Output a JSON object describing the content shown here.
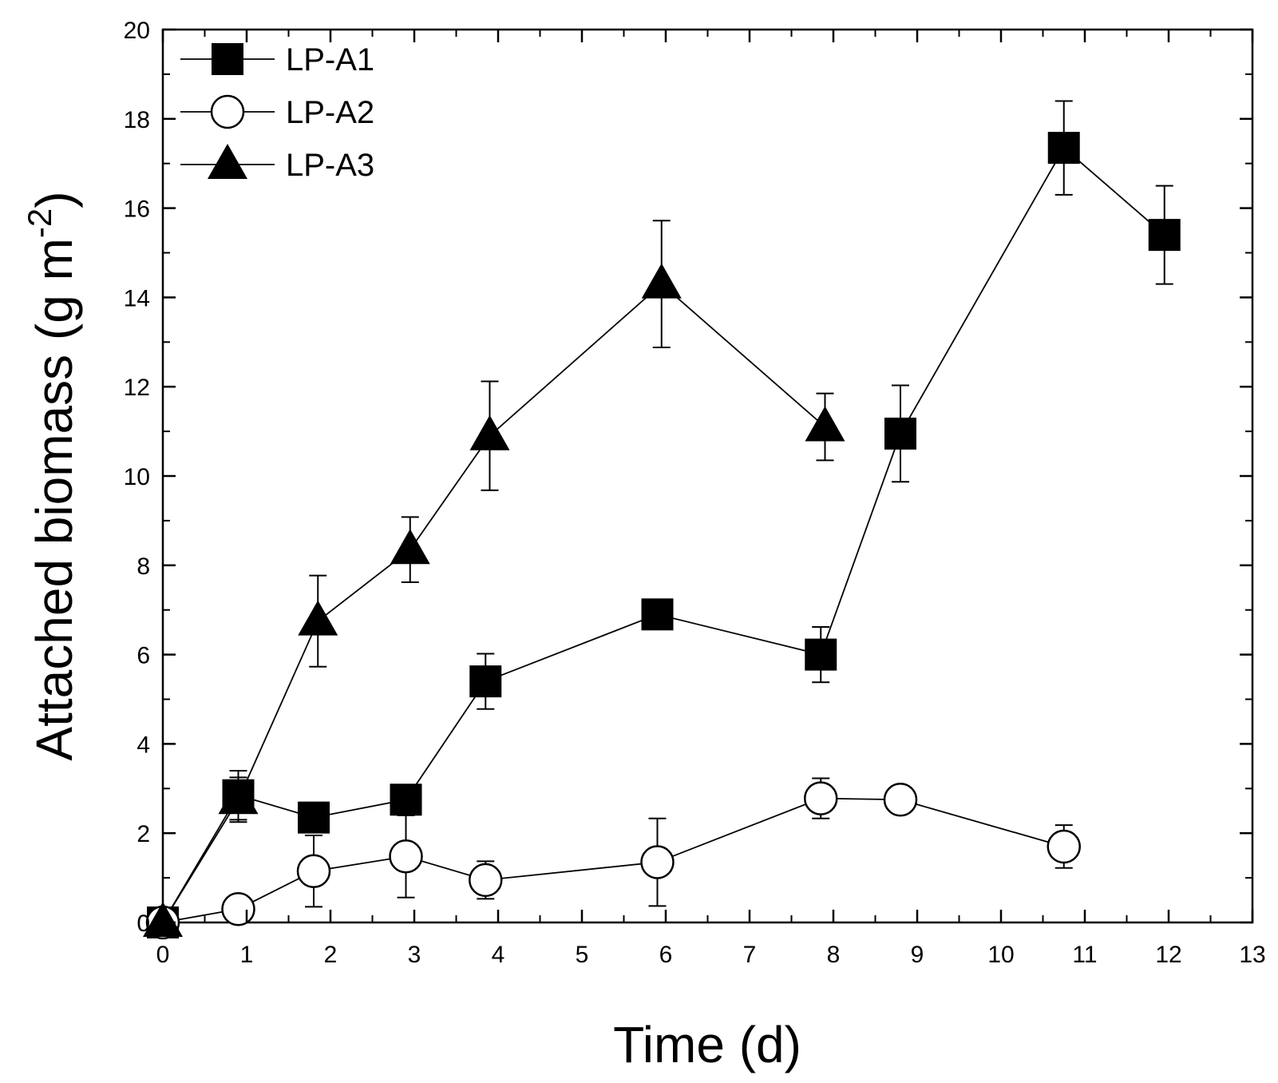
{
  "chart_data": {
    "type": "line",
    "title": "",
    "xlabel": "Time (d)",
    "ylabel_main": "Attached biomass  (g m",
    "ylabel_sup": "-2",
    "ylabel_close": ")",
    "xlim": [
      0,
      13
    ],
    "ylim": [
      0,
      20
    ],
    "x_ticks": [
      "0",
      "1",
      "2",
      "3",
      "4",
      "5",
      "6",
      "7",
      "8",
      "9",
      "10",
      "11",
      "12",
      "13"
    ],
    "y_ticks": [
      "0",
      "2",
      "4",
      "6",
      "8",
      "10",
      "12",
      "14",
      "16",
      "18",
      "20"
    ],
    "legend_position": "top-left",
    "grid": false,
    "series": [
      {
        "name": "LP-A1",
        "marker": "square-filled",
        "points": [
          {
            "x": 0,
            "y": 0,
            "err": 0
          },
          {
            "x": 0.9,
            "y": 2.85,
            "err": 0.55
          },
          {
            "x": 1.8,
            "y": 2.35,
            "err": 0
          },
          {
            "x": 2.9,
            "y": 2.75,
            "err": 0
          },
          {
            "x": 3.85,
            "y": 5.4,
            "err": 0.62
          },
          {
            "x": 5.9,
            "y": 6.9,
            "err": 0
          },
          {
            "x": 7.85,
            "y": 6.0,
            "err": 0.62
          },
          {
            "x": 8.8,
            "y": 10.95,
            "err": 1.08
          },
          {
            "x": 10.75,
            "y": 17.35,
            "err": 1.05
          },
          {
            "x": 11.95,
            "y": 15.4,
            "err": 1.1
          }
        ]
      },
      {
        "name": "LP-A2",
        "marker": "circle-open",
        "points": [
          {
            "x": 0,
            "y": 0,
            "err": 0
          },
          {
            "x": 0.9,
            "y": 0.3,
            "err": 0.1
          },
          {
            "x": 1.8,
            "y": 1.15,
            "err": 0.8
          },
          {
            "x": 2.9,
            "y": 1.48,
            "err": 0.92
          },
          {
            "x": 3.85,
            "y": 0.95,
            "err": 0.42
          },
          {
            "x": 5.9,
            "y": 1.35,
            "err": 0.98
          },
          {
            "x": 7.85,
            "y": 2.78,
            "err": 0.45
          },
          {
            "x": 8.8,
            "y": 2.75,
            "err": 0.3
          },
          {
            "x": 10.75,
            "y": 1.7,
            "err": 0.48
          }
        ]
      },
      {
        "name": "LP-A3",
        "marker": "triangle-filled",
        "points": [
          {
            "x": 0,
            "y": 0,
            "err": 0
          },
          {
            "x": 0.9,
            "y": 2.75,
            "err": 0.5
          },
          {
            "x": 1.85,
            "y": 6.75,
            "err": 1.02
          },
          {
            "x": 2.95,
            "y": 8.35,
            "err": 0.73
          },
          {
            "x": 3.9,
            "y": 10.9,
            "err": 1.22
          },
          {
            "x": 5.95,
            "y": 14.3,
            "err": 1.42
          },
          {
            "x": 7.9,
            "y": 11.1,
            "err": 0.75
          }
        ]
      }
    ]
  }
}
